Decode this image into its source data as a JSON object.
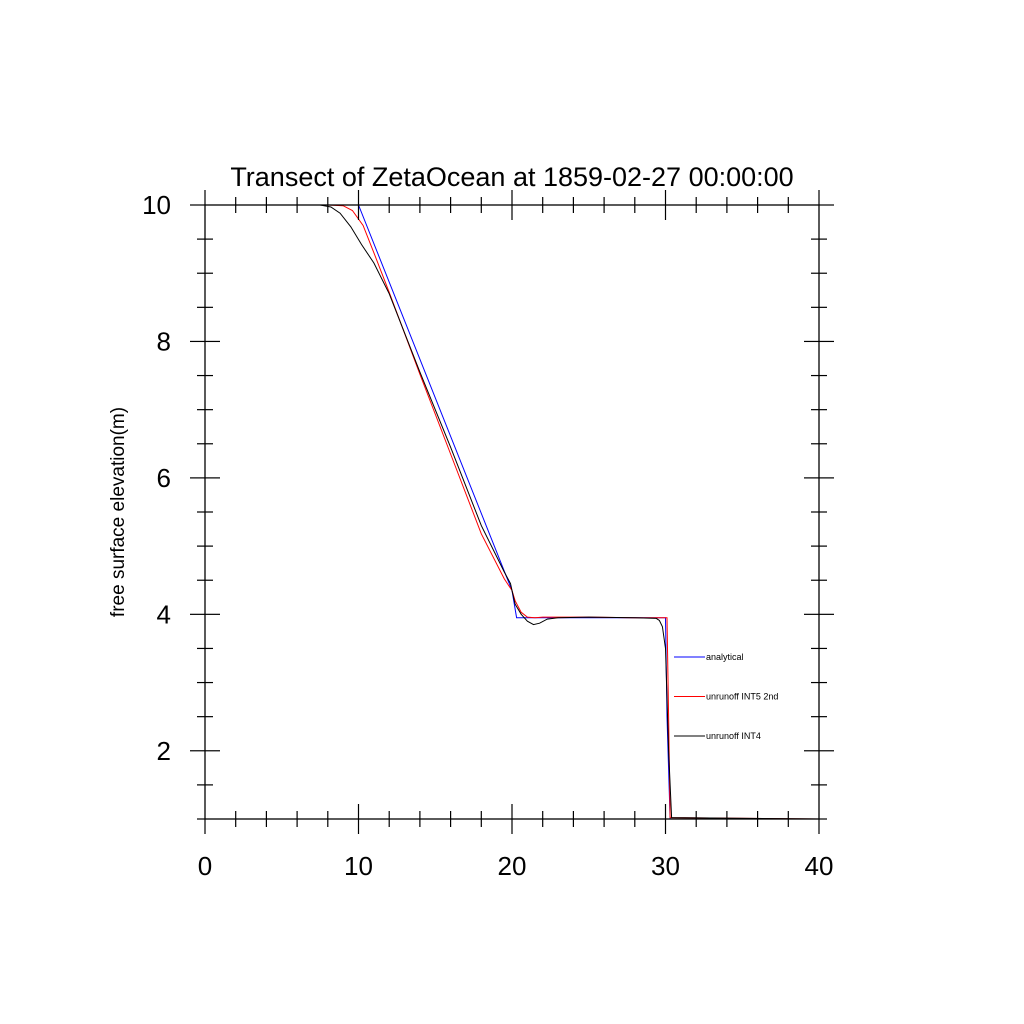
{
  "chart_data": {
    "type": "line",
    "title": "Transect of ZetaOcean at 1859-02-27 00:00:00",
    "xlabel": "",
    "ylabel": "free surface elevation(m)",
    "xlim": [
      0,
      40
    ],
    "ylim": [
      1,
      10
    ],
    "x_ticks": [
      0,
      10,
      20,
      30,
      40
    ],
    "y_ticks": [
      2,
      4,
      6,
      8,
      10
    ],
    "x_tick_labels": [
      "0",
      "10",
      "20",
      "30",
      "40"
    ],
    "y_tick_labels": [
      "2",
      "4",
      "6",
      "8",
      "10"
    ],
    "grid": false,
    "legend_position": "right",
    "series": [
      {
        "name": "analytical",
        "color": "#0000ff",
        "x": [
          0,
          10,
          20,
          20.3,
          30,
          30.1,
          30.3,
          40
        ],
        "y": [
          10,
          10,
          4.35,
          3.95,
          3.95,
          2.5,
          1,
          1
        ]
      },
      {
        "name": "unrunoff INT5 2nd",
        "color": "#ff0000",
        "x": [
          0,
          8,
          9,
          9.6,
          10.3,
          11,
          12,
          14,
          16,
          18,
          19.5,
          20,
          20.2,
          20.6,
          21,
          21.5,
          22,
          25,
          28,
          29.5,
          30,
          30.1,
          30.2,
          30.3,
          40
        ],
        "y": [
          10,
          10,
          9.99,
          9.92,
          9.7,
          9.3,
          8.72,
          7.52,
          6.35,
          5.18,
          4.52,
          4.35,
          4.2,
          4.03,
          3.96,
          3.95,
          3.96,
          3.96,
          3.95,
          3.95,
          3.95,
          3.95,
          2.5,
          1.02,
          1
        ]
      },
      {
        "name": "unrunoff INT4",
        "color": "#000000",
        "x": [
          0,
          7.5,
          8.2,
          8.8,
          9.5,
          10.2,
          11,
          12,
          14,
          16,
          18,
          19.5,
          19.9,
          20,
          20.2,
          20.6,
          21,
          21.4,
          21.8,
          22.3,
          23,
          25,
          28,
          29.4,
          29.6,
          29.8,
          30.0,
          30.2,
          30.4,
          40
        ],
        "y": [
          10,
          10,
          9.97,
          9.88,
          9.68,
          9.42,
          9.15,
          8.7,
          7.55,
          6.45,
          5.3,
          4.62,
          4.45,
          4.35,
          4.15,
          4.0,
          3.9,
          3.85,
          3.87,
          3.93,
          3.95,
          3.96,
          3.95,
          3.94,
          3.91,
          3.82,
          3.5,
          2.0,
          1.02,
          1
        ]
      }
    ]
  }
}
